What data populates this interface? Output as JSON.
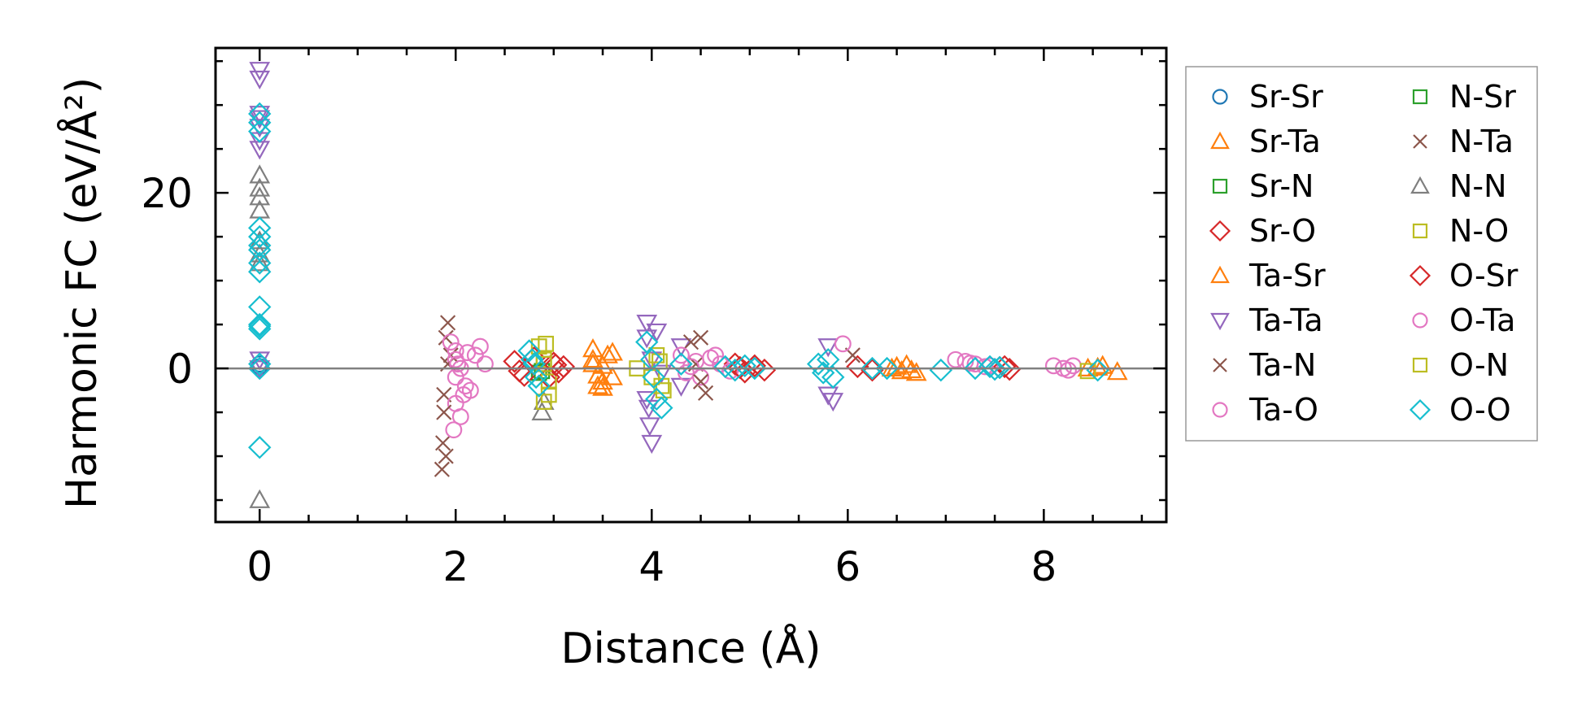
{
  "chart_data": {
    "type": "scatter",
    "xlabel": "Distance (Å)",
    "ylabel": "Harmonic FC (eV/Å²)",
    "xlim": [
      -0.45,
      9.25
    ],
    "ylim": [
      -17.5,
      36.5
    ],
    "xticks": [
      0,
      2,
      4,
      6,
      8
    ],
    "yticks": [
      0,
      20
    ],
    "zero_line": 0,
    "legend_position": "outside-right",
    "legend_columns": 2,
    "series": [
      {
        "name": "Sr-Sr",
        "marker": "circle",
        "color": "#1f77b4",
        "x": [
          0.0,
          0.0
        ],
        "y": [
          0.2,
          0.5
        ]
      },
      {
        "name": "Sr-Ta",
        "marker": "triangle-up",
        "color": "#ff7f0e",
        "x": [
          3.4,
          3.4,
          3.45,
          3.5,
          3.5,
          3.55,
          3.6,
          3.45,
          6.45,
          6.55,
          6.6,
          6.7,
          8.45,
          8.6,
          8.75
        ],
        "y": [
          2.2,
          1.0,
          -0.8,
          -2.2,
          0.3,
          1.5,
          -1.0,
          -2.0,
          0.0,
          -0.3,
          0.4,
          -0.5,
          0.0,
          0.3,
          -0.4
        ]
      },
      {
        "name": "Sr-N",
        "marker": "square",
        "color": "#2ca02c",
        "x": [
          2.9,
          2.85
        ],
        "y": [
          0.5,
          -0.5
        ]
      },
      {
        "name": "Sr-O",
        "marker": "diamond",
        "color": "#d62728",
        "x": [
          2.6,
          2.7,
          2.8,
          2.95,
          3.0,
          3.05,
          3.1,
          4.85,
          4.95,
          5.05,
          5.15,
          6.1,
          6.25,
          7.55,
          7.65
        ],
        "y": [
          0.8,
          -0.8,
          1.2,
          -1.0,
          0.6,
          -0.4,
          0.2,
          0.5,
          -0.4,
          0.3,
          -0.2,
          0.2,
          -0.2,
          0.1,
          -0.1
        ]
      },
      {
        "name": "Ta-Sr",
        "marker": "triangle-up",
        "color": "#ff7f0e",
        "x": [
          3.4,
          3.5,
          3.6,
          6.5,
          6.65,
          8.55
        ],
        "y": [
          0.5,
          -1.5,
          1.8,
          0.2,
          -0.2,
          0.1
        ]
      },
      {
        "name": "Ta-Ta",
        "marker": "triangle-down",
        "color": "#9467bd",
        "x": [
          0.0,
          0.0,
          0.0,
          0.0,
          0.0,
          0.0,
          0.0,
          0.0,
          0.0,
          3.95,
          3.95,
          3.95,
          3.97,
          3.98,
          4.0,
          4.0,
          4.05,
          4.1,
          4.3,
          4.3,
          5.8,
          5.8,
          5.85
        ],
        "y": [
          34.0,
          33.0,
          29.0,
          28.5,
          27.5,
          26.0,
          25.0,
          1.0,
          0.0,
          5.2,
          3.5,
          -3.5,
          -4.5,
          -6.5,
          -8.5,
          1.0,
          4.2,
          -0.5,
          2.5,
          -2.0,
          2.5,
          -3.0,
          -3.7
        ]
      },
      {
        "name": "Ta-N",
        "marker": "x",
        "color": "#8c564b",
        "x": [
          1.92,
          1.9,
          1.88,
          1.87,
          1.86,
          1.9,
          1.95,
          4.4,
          4.5,
          4.55,
          4.45,
          6.05
        ],
        "y": [
          5.2,
          3.5,
          -3.0,
          -8.5,
          -11.5,
          -10.0,
          1.5,
          3.0,
          3.5,
          -2.8,
          0.5,
          1.5
        ]
      },
      {
        "name": "Ta-O",
        "marker": "circle",
        "color": "#e377c2",
        "x": [
          1.95,
          2.0,
          2.0,
          2.05,
          2.0,
          2.1,
          2.2,
          2.25,
          2.3,
          2.0,
          2.05,
          1.98,
          2.15,
          4.3,
          4.35,
          4.45,
          4.5,
          4.6,
          4.7,
          4.8,
          5.95,
          7.1,
          7.2,
          7.3,
          7.45,
          8.1,
          8.2,
          8.3
        ],
        "y": [
          3.0,
          2.0,
          1.0,
          0.0,
          -1.0,
          -2.0,
          1.5,
          2.5,
          0.5,
          -4.0,
          -5.5,
          -7.0,
          -2.5,
          1.5,
          -0.5,
          0.8,
          -1.0,
          1.2,
          0.5,
          -0.3,
          2.8,
          1.0,
          0.8,
          0.5,
          0.3,
          0.3,
          0.0,
          0.3
        ]
      },
      {
        "name": "N-Sr",
        "marker": "square",
        "color": "#2ca02c",
        "x": [
          2.88
        ],
        "y": [
          -0.3
        ]
      },
      {
        "name": "N-Ta",
        "marker": "x",
        "color": "#8c564b",
        "x": [
          1.88,
          1.92,
          4.5
        ],
        "y": [
          -5.0,
          0.5,
          -1.5
        ]
      },
      {
        "name": "N-N",
        "marker": "triangle-up",
        "color": "#7f7f7f",
        "x": [
          0.0,
          0.0,
          0.0,
          0.0,
          0.0,
          0.0,
          0.0,
          0.0,
          2.88,
          2.9
        ],
        "y": [
          22.0,
          20.5,
          19.5,
          18.0,
          14.5,
          13.0,
          12.0,
          -15.0,
          -5.0,
          -3.8
        ]
      },
      {
        "name": "N-O",
        "marker": "square",
        "color": "#bcbd22",
        "x": [
          2.85,
          2.9,
          2.92,
          2.95,
          2.95,
          2.9,
          3.85,
          4.0,
          4.05,
          4.1,
          4.12,
          8.45
        ],
        "y": [
          2.5,
          1.0,
          2.8,
          -1.5,
          -3.0,
          -3.8,
          0.0,
          -1.0,
          1.5,
          -2.0,
          -2.5,
          -0.3
        ]
      },
      {
        "name": "O-Sr",
        "marker": "diamond",
        "color": "#d62728",
        "x": [
          2.65,
          3.02,
          4.9,
          7.6
        ],
        "y": [
          -0.3,
          0.4,
          0.1,
          0.2
        ]
      },
      {
        "name": "O-Ta",
        "marker": "circle",
        "color": "#e377c2",
        "x": [
          2.02,
          2.08,
          2.12,
          4.4,
          4.65,
          7.25,
          7.4,
          8.25
        ],
        "y": [
          0.5,
          -3.0,
          1.8,
          0.2,
          1.5,
          0.6,
          0.2,
          -0.2
        ]
      },
      {
        "name": "O-N",
        "marker": "square",
        "color": "#bcbd22",
        "x": [
          2.9,
          4.08
        ],
        "y": [
          0.5,
          0.8
        ]
      },
      {
        "name": "O-O",
        "marker": "diamond",
        "color": "#17becf",
        "x": [
          0.0,
          0.0,
          0.0,
          0.0,
          0.0,
          0.0,
          0.0,
          0.0,
          0.0,
          0.0,
          0.0,
          0.0,
          0.0,
          0.0,
          0.0,
          0.0,
          2.75,
          2.8,
          2.82,
          2.85,
          2.78,
          3.95,
          4.0,
          4.02,
          4.05,
          4.1,
          4.3,
          4.75,
          4.85,
          4.95,
          5.05,
          5.7,
          5.75,
          5.8,
          5.85,
          6.25,
          6.4,
          6.95,
          7.3,
          7.45,
          7.5,
          7.55,
          8.55
        ],
        "y": [
          29.0,
          28.0,
          27.0,
          16.0,
          15.0,
          14.0,
          13.5,
          12.0,
          11.0,
          7.0,
          5.0,
          4.8,
          4.5,
          0.5,
          0.0,
          -9.0,
          2.0,
          0.5,
          -1.0,
          -2.0,
          1.0,
          3.0,
          1.0,
          -1.0,
          -3.5,
          -4.5,
          0.5,
          0.2,
          -0.2,
          0.3,
          0.0,
          0.5,
          -0.5,
          1.0,
          -1.0,
          0.0,
          0.0,
          -0.2,
          0.0,
          0.2,
          -0.1,
          0.1,
          -0.2
        ]
      }
    ]
  }
}
